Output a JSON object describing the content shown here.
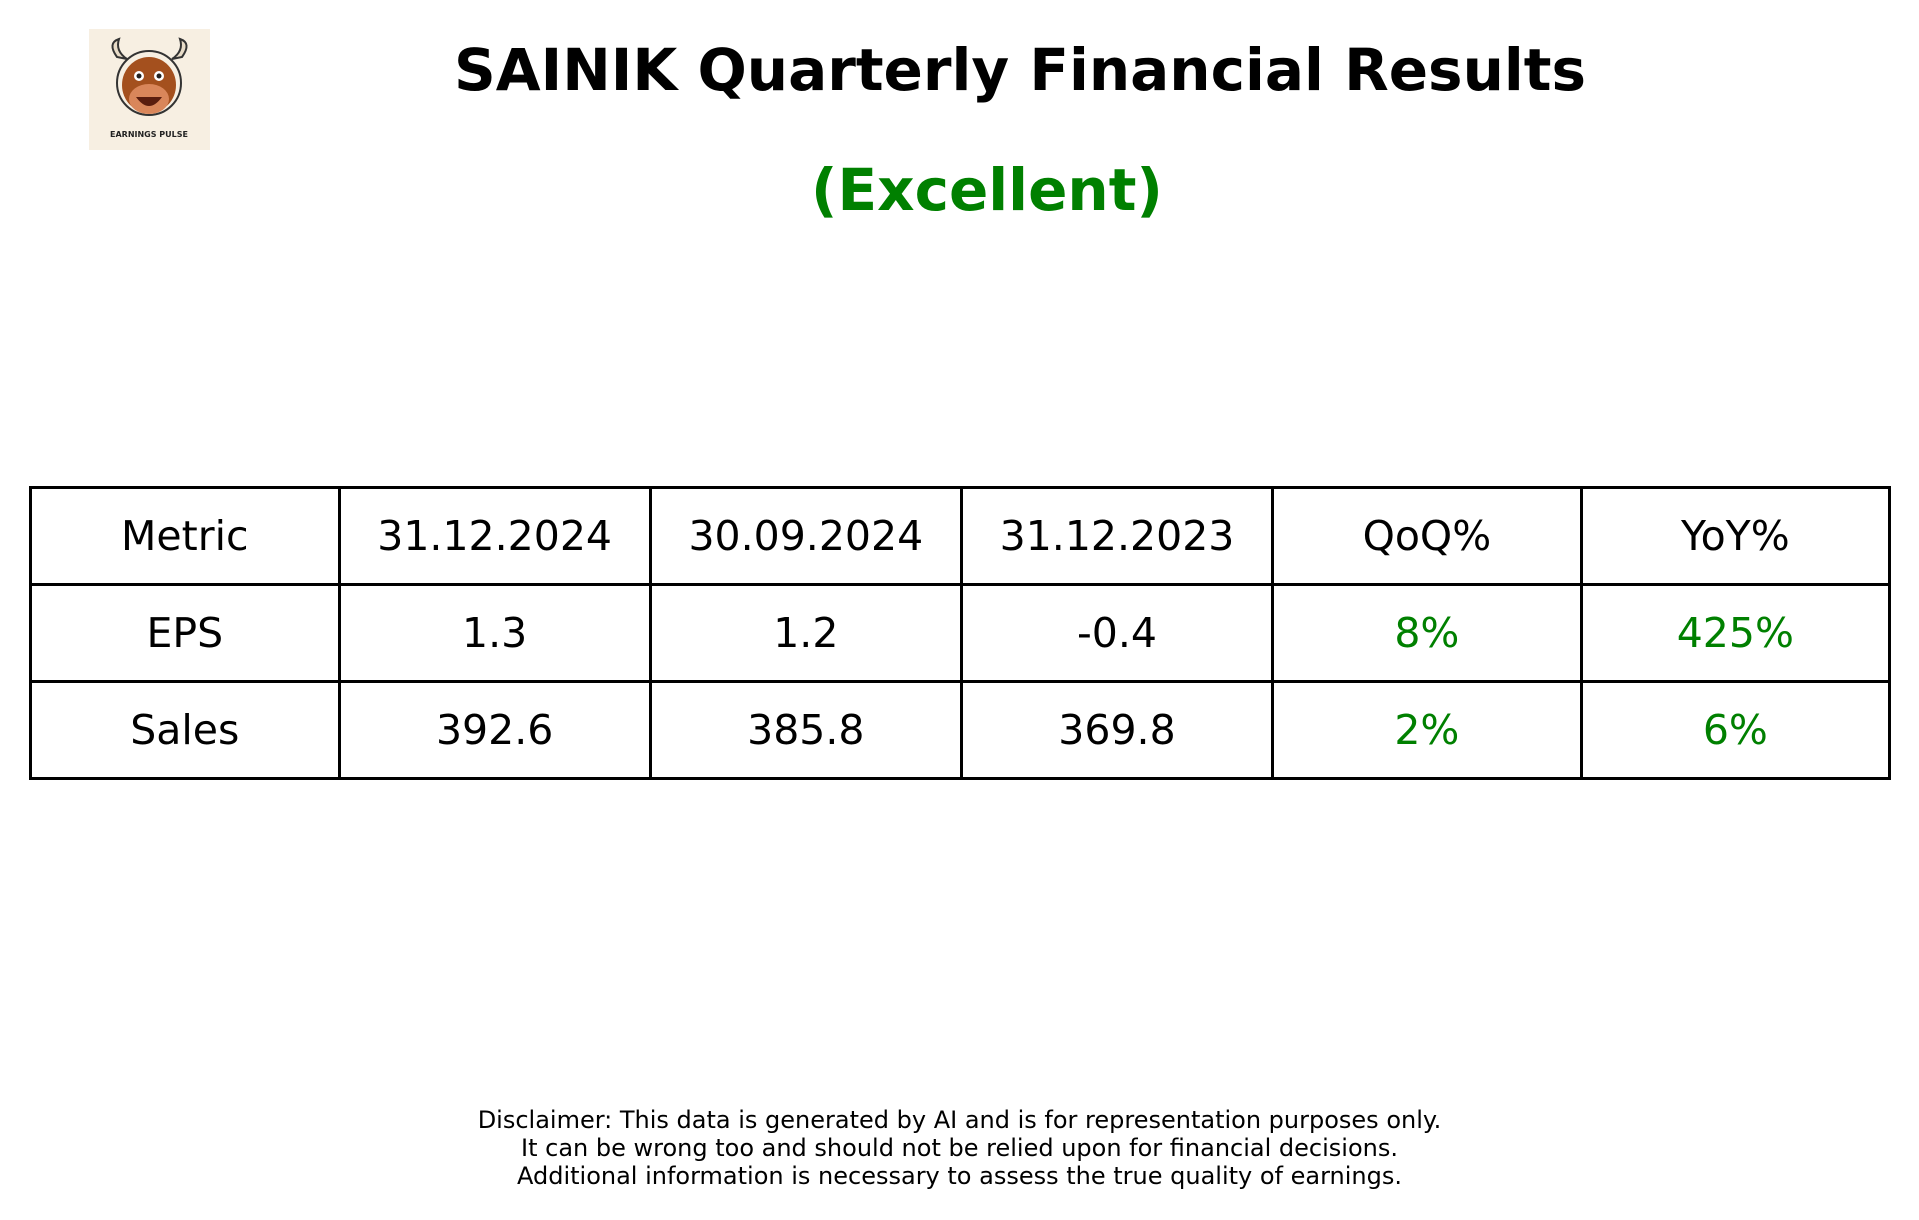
{
  "header": {
    "title": "SAINIK Quarterly Financial Results",
    "subtitle": "(Excellent)",
    "logo_text": "EARNINGS PULSE"
  },
  "table": {
    "columns": [
      "Metric",
      "31.12.2024",
      "30.09.2024",
      "31.12.2023",
      "QoQ%",
      "YoY%"
    ],
    "rows": [
      [
        "EPS",
        "1.3",
        "1.2",
        "-0.4",
        "8%",
        "425%"
      ],
      [
        "Sales",
        "392.6",
        "385.8",
        "369.8",
        "2%",
        "6%"
      ]
    ]
  },
  "disclaimer": [
    "Disclaimer: This data is generated by AI and is for representation purposes only.",
    "It can be wrong too and should not be relied upon for financial decisions.",
    "Additional information is necessary to assess the true quality of earnings."
  ]
}
